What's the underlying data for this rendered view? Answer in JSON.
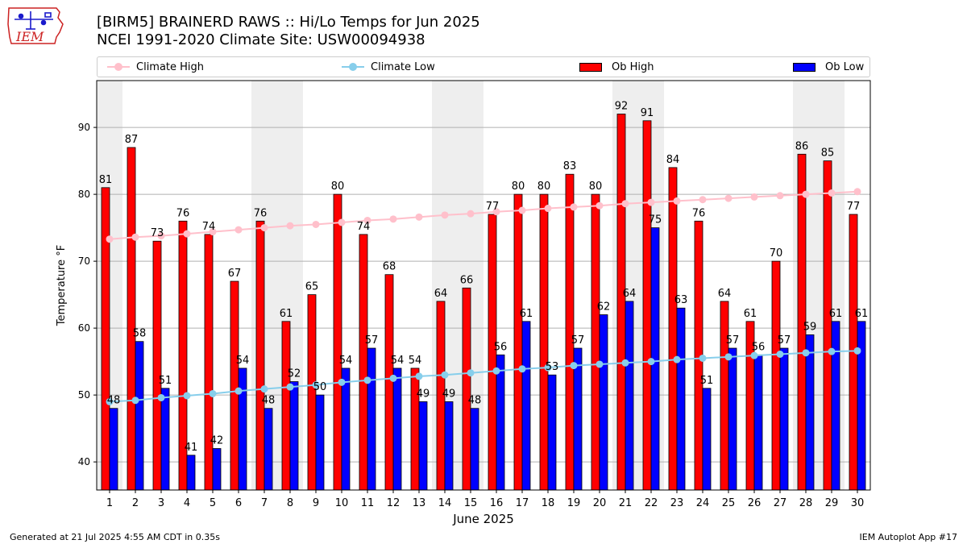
{
  "title_line1": "[BIRM5] BRAINERD RAWS :: Hi/Lo Temps for Jun 2025",
  "title_line2": "NCEI 1991-2020 Climate Site: USW00094938",
  "footer_left": "Generated at 21 Jul 2025 4:55 AM CDT in 0.35s",
  "footer_right": "IEM Autoplot App #17",
  "logo_text": "IEM",
  "legend": {
    "climate_high": "Climate High",
    "climate_low": "Climate Low",
    "ob_high": "Ob High",
    "ob_low": "Ob Low"
  },
  "colors": {
    "ob_high": "#ff0000",
    "ob_low": "#0000ff",
    "climate_high": "#ffc0cb",
    "climate_low": "#87ceeb",
    "weekend_shade": "#eeeeee",
    "logo_red": "#cc2222",
    "logo_blue": "#1a1acc"
  },
  "chart_data": {
    "type": "bar",
    "xlabel": "June 2025",
    "ylabel": "Temperature °F",
    "ylim": [
      35.8,
      97
    ],
    "yticks": [
      40,
      50,
      60,
      70,
      80,
      90
    ],
    "grid": true,
    "legend_placement": "top",
    "categories": [
      "1",
      "2",
      "3",
      "4",
      "5",
      "6",
      "7",
      "8",
      "9",
      "10",
      "11",
      "12",
      "13",
      "14",
      "15",
      "16",
      "17",
      "18",
      "19",
      "20",
      "21",
      "22",
      "23",
      "24",
      "25",
      "26",
      "27",
      "28",
      "29",
      "30"
    ],
    "shaded_days": [
      1,
      7,
      8,
      14,
      15,
      21,
      22,
      28,
      29
    ],
    "series": [
      {
        "name": "Ob High",
        "kind": "bar",
        "values": [
          81,
          87,
          73,
          76,
          74,
          67,
          76,
          61,
          65,
          80,
          74,
          68,
          54,
          64,
          66,
          77,
          80,
          80,
          83,
          80,
          92,
          91,
          84,
          76,
          64,
          61,
          70,
          86,
          85,
          77
        ]
      },
      {
        "name": "Ob Low",
        "kind": "bar",
        "values": [
          48,
          58,
          51,
          41,
          42,
          54,
          48,
          52,
          50,
          54,
          57,
          54,
          49,
          49,
          48,
          56,
          61,
          53,
          57,
          62,
          64,
          75,
          63,
          51,
          57,
          56,
          57,
          59,
          61,
          61
        ]
      },
      {
        "name": "Climate High",
        "kind": "line",
        "values": [
          73.3,
          73.6,
          73.8,
          74.1,
          74.4,
          74.7,
          75.0,
          75.3,
          75.5,
          75.8,
          76.1,
          76.3,
          76.6,
          76.9,
          77.1,
          77.4,
          77.6,
          77.9,
          78.1,
          78.3,
          78.6,
          78.8,
          79.0,
          79.2,
          79.4,
          79.6,
          79.8,
          80.0,
          80.2,
          80.4
        ]
      },
      {
        "name": "Climate Low",
        "kind": "line",
        "values": [
          49.0,
          49.2,
          49.6,
          49.9,
          50.2,
          50.6,
          50.9,
          51.2,
          51.5,
          51.9,
          52.2,
          52.5,
          52.8,
          53.0,
          53.3,
          53.6,
          53.9,
          54.1,
          54.4,
          54.6,
          54.8,
          55.0,
          55.3,
          55.5,
          55.7,
          55.9,
          56.1,
          56.3,
          56.5,
          56.6
        ]
      }
    ]
  }
}
